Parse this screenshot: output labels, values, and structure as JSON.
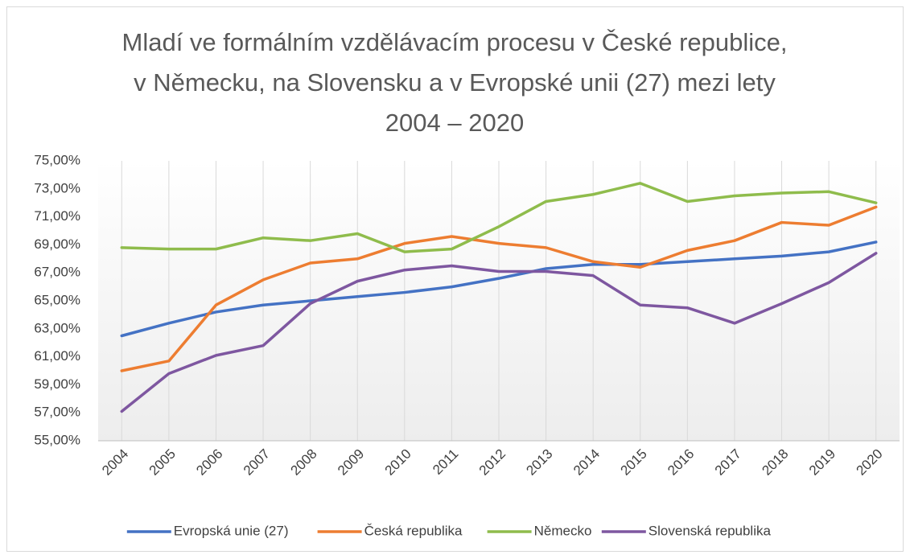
{
  "chart_data": {
    "type": "line",
    "title": "Mladí ve formálním vzdělávacím procesu v České republice, v Německu, na Slovensku a v Evropské unii (27) mezi lety 2004 – 2020",
    "categories": [
      "2004",
      "2005",
      "2006",
      "2007",
      "2008",
      "2009",
      "2010",
      "2011",
      "2012",
      "2013",
      "2014",
      "2015",
      "2016",
      "2017",
      "2018",
      "2019",
      "2020"
    ],
    "series": [
      {
        "name": "Evropská unie (27)",
        "color": "#4472c4",
        "values": [
          62.5,
          63.4,
          64.2,
          64.7,
          65.0,
          65.3,
          65.6,
          66.0,
          66.6,
          67.3,
          67.6,
          67.6,
          67.8,
          68.0,
          68.2,
          68.5,
          69.2
        ]
      },
      {
        "name": "Česká republika",
        "color": "#ed7d31",
        "values": [
          60.0,
          60.7,
          64.7,
          66.5,
          67.7,
          68.0,
          69.1,
          69.6,
          69.1,
          68.8,
          67.8,
          67.4,
          68.6,
          69.3,
          70.6,
          70.4,
          71.7
        ]
      },
      {
        "name": "Německo",
        "color": "#8fbc4c",
        "values": [
          68.8,
          68.7,
          68.7,
          69.5,
          69.3,
          69.8,
          68.5,
          68.7,
          70.3,
          72.1,
          72.6,
          73.4,
          72.1,
          72.5,
          72.7,
          72.8,
          72.0
        ]
      },
      {
        "name": "Slovenská republika",
        "color": "#7e57a0",
        "values": [
          57.1,
          59.8,
          61.1,
          61.8,
          64.8,
          66.4,
          67.2,
          67.5,
          67.1,
          67.1,
          66.8,
          64.7,
          64.5,
          63.4,
          64.8,
          66.3,
          68.4
        ]
      }
    ],
    "ylim": [
      55,
      75
    ],
    "yticks": [
      {
        "value": 55,
        "label": "55,00%"
      },
      {
        "value": 57,
        "label": "57,00%"
      },
      {
        "value": 59,
        "label": "59,00%"
      },
      {
        "value": 61,
        "label": "61,00%"
      },
      {
        "value": 63,
        "label": "63,00%"
      },
      {
        "value": 65,
        "label": "65,00%"
      },
      {
        "value": 67,
        "label": "67,00%"
      },
      {
        "value": 69,
        "label": "69,00%"
      },
      {
        "value": 71,
        "label": "71,00%"
      },
      {
        "value": 73,
        "label": "73,00%"
      },
      {
        "value": 75,
        "label": "75,00%"
      }
    ],
    "grid": "x",
    "legend": "bottom"
  }
}
